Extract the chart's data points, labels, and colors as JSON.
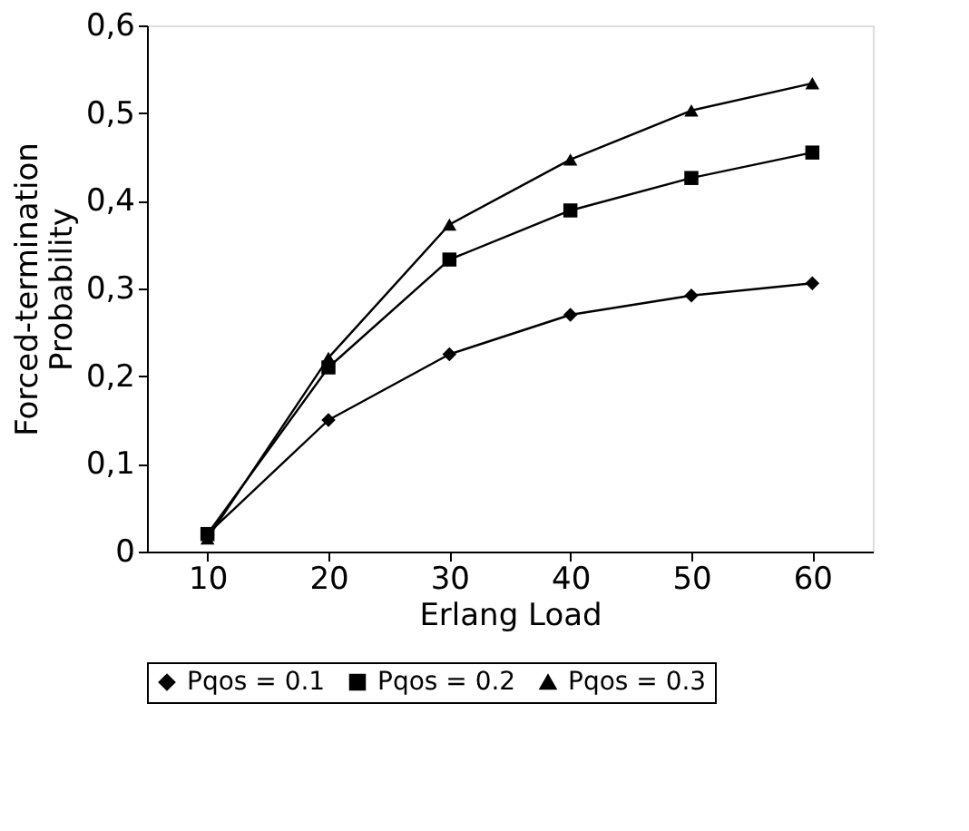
{
  "chart_data": {
    "type": "line",
    "xlabel": "Erlang Load",
    "ylabel": "Forced-termination Probability",
    "categories": [
      "10",
      "20",
      "30",
      "40",
      "50",
      "60"
    ],
    "series": [
      {
        "name": "Pqos = 0.1",
        "color": "#000000",
        "marker": "diamond",
        "values": [
          0.02,
          0.15,
          0.225,
          0.27,
          0.292,
          0.306
        ]
      },
      {
        "name": "Pqos = 0.2",
        "color": "#000000",
        "marker": "square",
        "values": [
          0.02,
          0.21,
          0.333,
          0.389,
          0.426,
          0.455
        ]
      },
      {
        "name": "Pqos = 0.3",
        "color": "#000000",
        "marker": "triangle",
        "values": [
          0.015,
          0.221,
          0.373,
          0.447,
          0.503,
          0.534
        ]
      }
    ],
    "ylim": [
      0,
      0.6
    ],
    "yticks": [
      0,
      {
        "value": 0.1,
        "label": "0,1"
      },
      {
        "value": 0.2,
        "label": "0,2"
      },
      {
        "value": 0.3,
        "label": "0,3"
      },
      {
        "value": 0.4,
        "label": "0,4"
      },
      {
        "value": 0.5,
        "label": "0,5"
      },
      {
        "value": 0.6,
        "label": "0,6"
      }
    ],
    "grid": false,
    "legend": "bottom",
    "line_style": "solid"
  }
}
